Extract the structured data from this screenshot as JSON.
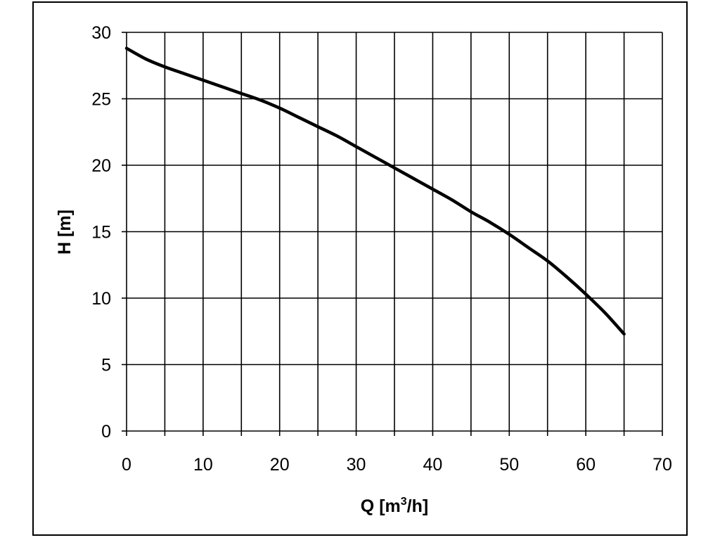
{
  "chart_data": {
    "type": "line",
    "xlabel": "Q [m3/h]",
    "xlabel_parts": {
      "main": "Q [m",
      "sup": "3",
      "tail": "/h]"
    },
    "ylabel": "H [m]",
    "xlim": [
      0,
      70
    ],
    "ylim": [
      0,
      30
    ],
    "xticks": [
      0,
      10,
      20,
      30,
      40,
      50,
      60,
      70
    ],
    "yticks": [
      0,
      5,
      10,
      15,
      20,
      25,
      30
    ],
    "xgrid_step": 5,
    "ygrid_step": 5,
    "grid": true,
    "legend": "none",
    "series": [
      {
        "color": "#000000",
        "x": [
          0,
          2.5,
          5,
          7.5,
          10,
          12.5,
          15,
          17.5,
          20,
          22.5,
          25,
          27.5,
          30,
          32.5,
          35,
          37.5,
          40,
          42.5,
          45,
          47.5,
          50,
          52.5,
          55,
          57.5,
          60,
          62.5,
          65
        ],
        "y": [
          28.8,
          28.0,
          27.4,
          26.9,
          26.4,
          25.9,
          25.4,
          24.9,
          24.3,
          23.6,
          22.9,
          22.2,
          21.4,
          20.6,
          19.8,
          19.0,
          18.2,
          17.4,
          16.5,
          15.7,
          14.8,
          13.8,
          12.8,
          11.6,
          10.3,
          8.9,
          7.3
        ]
      }
    ]
  }
}
